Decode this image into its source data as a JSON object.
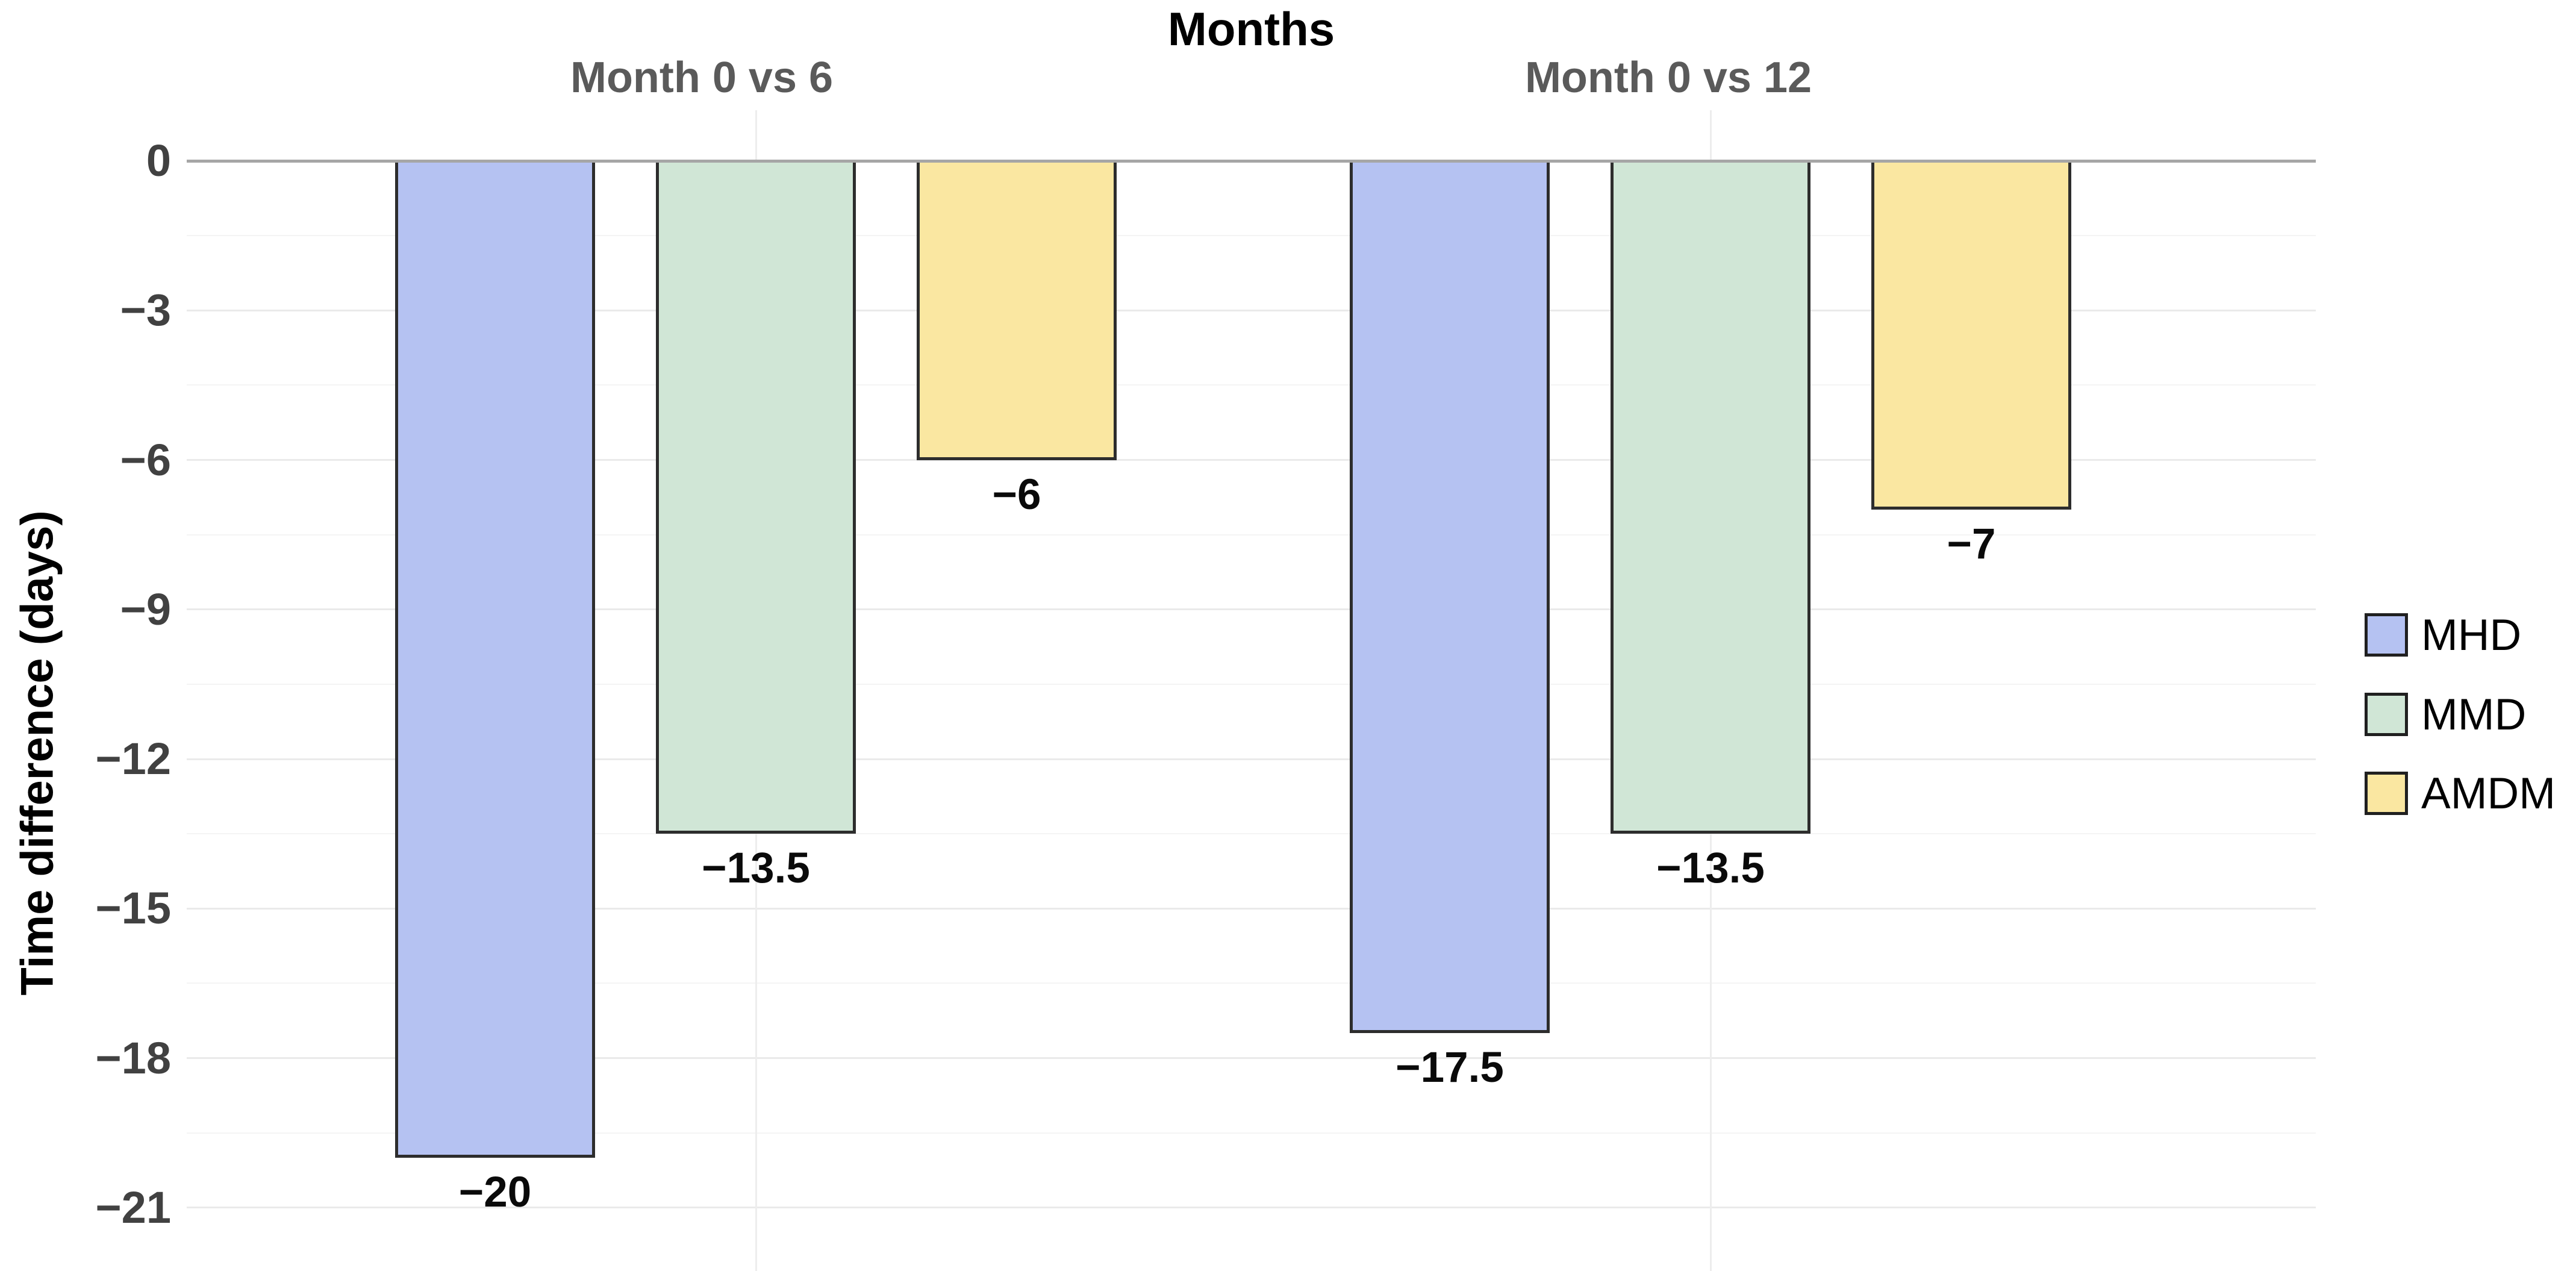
{
  "chart_data": {
    "type": "bar",
    "title": "Months",
    "ylabel": "Time difference (days)",
    "facets": [
      {
        "label": "Month 0 vs 6"
      },
      {
        "label": "Month 0 vs 12"
      }
    ],
    "series": [
      {
        "name": "MHD",
        "color": "#b5c2f2"
      },
      {
        "name": "MMD",
        "color": "#d0e6d6"
      },
      {
        "name": "AMDM",
        "color": "#fae7a1"
      }
    ],
    "groups": [
      {
        "facet": "Month 0 vs 6",
        "bars": [
          {
            "series": "MHD",
            "value": -20,
            "label": "−20"
          },
          {
            "series": "MMD",
            "value": -13.5,
            "label": "−13.5"
          },
          {
            "series": "AMDM",
            "value": -6,
            "label": "−6"
          }
        ]
      },
      {
        "facet": "Month 0 vs 12",
        "bars": [
          {
            "series": "MHD",
            "value": -17.5,
            "label": "−17.5"
          },
          {
            "series": "MMD",
            "value": -13.5,
            "label": "−13.5"
          },
          {
            "series": "AMDM",
            "value": -7,
            "label": "−7"
          }
        ]
      }
    ],
    "yticks": [
      {
        "value": 0,
        "label": "0"
      },
      {
        "value": -3,
        "label": "−3"
      },
      {
        "value": -6,
        "label": "−6"
      },
      {
        "value": -9,
        "label": "−9"
      },
      {
        "value": -12,
        "label": "−12"
      },
      {
        "value": -15,
        "label": "−15"
      },
      {
        "value": -18,
        "label": "−18"
      },
      {
        "value": -21,
        "label": "−21"
      }
    ],
    "minor_ticks": [
      -1.5,
      -4.5,
      -7.5,
      -10.5,
      -13.5,
      -16.5,
      -19.5
    ],
    "ylim": [
      -22.3,
      1.0
    ],
    "grid": true,
    "legend_position": "right"
  },
  "colors": {
    "zero_line": "#a6a6a6",
    "grid_major": "#eaeaea",
    "grid_minor": "#f4f4f4",
    "grid_vertical": "#ededed",
    "bar_border": "#2d2d2d",
    "strip_text": "#5a5a5a",
    "tick_text": "#414141",
    "title_text": "#000000",
    "value_text": "#0a0a0a",
    "legend_swatch_border": "#202020"
  }
}
